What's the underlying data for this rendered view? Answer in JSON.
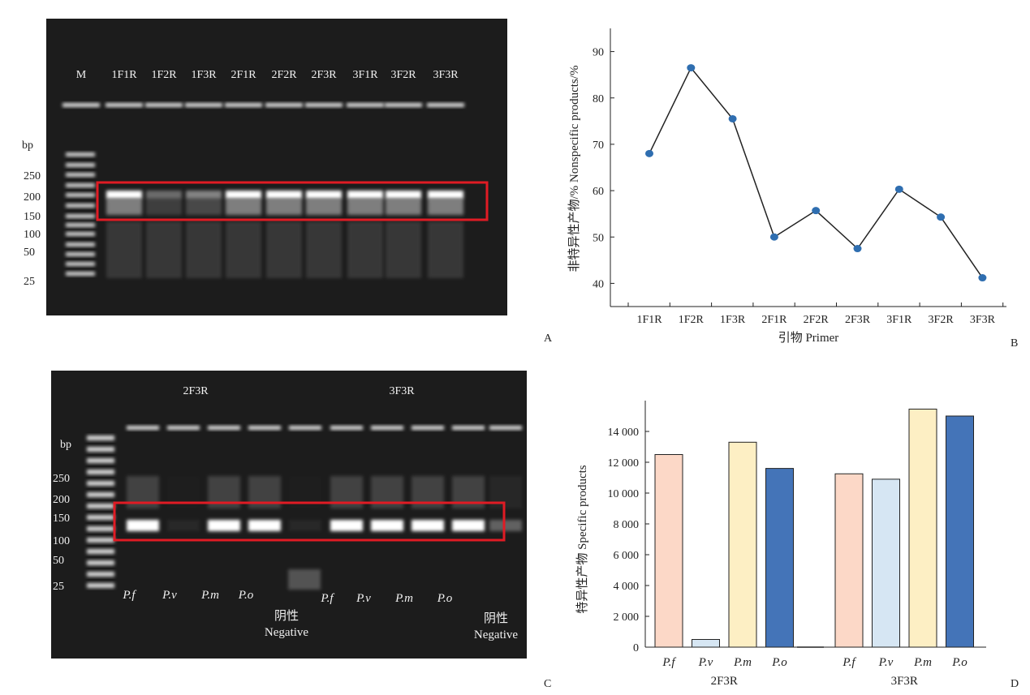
{
  "panel_a": {
    "letter": "A",
    "marker_label": "M",
    "lane_labels": [
      "1F1R",
      "1F2R",
      "1F3R",
      "2F1R",
      "2F2R",
      "2F3R",
      "3F1R",
      "3F2R",
      "3F3R"
    ],
    "bp_title": "bp",
    "bp_ticks": [
      "250",
      "200",
      "150",
      "100",
      "50",
      "25"
    ]
  },
  "panel_b": {
    "letter": "B",
    "chart_data": {
      "type": "line",
      "categories": [
        "1F1R",
        "1F2R",
        "1F3R",
        "2F1R",
        "2F2R",
        "2F3R",
        "3F1R",
        "3F2R",
        "3F3R"
      ],
      "values": [
        68,
        86.5,
        75.5,
        50,
        55.7,
        47.5,
        60.3,
        54.3,
        41.2
      ],
      "ylabel": "非特异性产物/%  Nonspecific  products/%",
      "xlabel": "引物    Primer",
      "ylim": [
        35,
        95
      ],
      "yticks": [
        "40",
        "50",
        "60",
        "70",
        "80",
        "90"
      ],
      "marker_color": "#2f6eb0",
      "line_color": "#222222"
    }
  },
  "panel_c": {
    "letter": "C",
    "bp_title": "bp",
    "bp_ticks": [
      "250",
      "200",
      "150",
      "100",
      "50",
      "25"
    ],
    "group_labels": [
      "2F3R",
      "3F3R"
    ],
    "sample_labels_2f3r": [
      "P.f",
      "P.v",
      "P.m",
      "P.o"
    ],
    "sample_labels_3f3r": [
      "P.f",
      "P.v",
      "P.m",
      "P.o"
    ],
    "negative_cn": "阴性",
    "negative_en": "Negative"
  },
  "panel_d": {
    "letter": "D",
    "chart_data": {
      "type": "bar",
      "ylabel": "特异性产物  Specific  products",
      "ylim": [
        0,
        16000
      ],
      "yticks": [
        "0",
        "2 000",
        "4 000",
        "6 000",
        "8 000",
        "10 000",
        "12 000",
        "14 000"
      ],
      "groups": [
        {
          "name": "2F3R",
          "categories": [
            "P.f",
            "P.v",
            "P.m",
            "P.o"
          ],
          "values": [
            12500,
            500,
            13300,
            11600
          ],
          "empty_value": 0
        },
        {
          "name": "3F3R",
          "categories": [
            "P.f",
            "P.v",
            "P.m",
            "P.o"
          ],
          "values": [
            11250,
            10900,
            15450,
            15000
          ]
        }
      ],
      "colors": [
        "#fcd8c7",
        "#d6e6f3",
        "#fdefc4",
        "#4474b8"
      ]
    }
  }
}
